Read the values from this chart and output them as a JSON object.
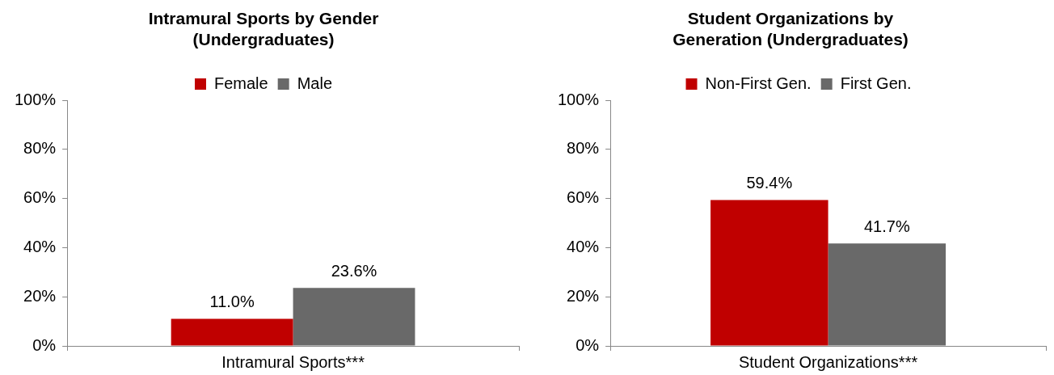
{
  "chart_data": [
    {
      "type": "bar",
      "title": "Intramural Sports by Gender (Undergraduates)",
      "categories": [
        "Intramural Sports***"
      ],
      "series": [
        {
          "name": "Female",
          "color": "#c00000",
          "values": [
            11.0
          ],
          "value_labels": [
            "11.0%"
          ]
        },
        {
          "name": "Male",
          "color": "#696969",
          "values": [
            23.6
          ],
          "value_labels": [
            "23.6%"
          ]
        }
      ],
      "ylim": [
        0,
        100
      ],
      "yticks": [
        {
          "value": 0,
          "label": "0%"
        },
        {
          "value": 20,
          "label": "20%"
        },
        {
          "value": 40,
          "label": "40%"
        },
        {
          "value": 60,
          "label": "60%"
        },
        {
          "value": 80,
          "label": "80%"
        },
        {
          "value": 100,
          "label": "100%"
        }
      ],
      "legend": "top",
      "grid": false
    },
    {
      "type": "bar",
      "title": "Student Organizations by Generation (Undergraduates)",
      "categories": [
        "Student Organizations***"
      ],
      "series": [
        {
          "name": "Non-First Gen.",
          "color": "#c00000",
          "values": [
            59.4
          ],
          "value_labels": [
            "59.4%"
          ]
        },
        {
          "name": "First Gen.",
          "color": "#696969",
          "values": [
            41.7
          ],
          "value_labels": [
            "41.7%"
          ]
        }
      ],
      "ylim": [
        0,
        100
      ],
      "yticks": [
        {
          "value": 0,
          "label": "0%"
        },
        {
          "value": 20,
          "label": "20%"
        },
        {
          "value": 40,
          "label": "40%"
        },
        {
          "value": 60,
          "label": "60%"
        },
        {
          "value": 80,
          "label": "80%"
        },
        {
          "value": 100,
          "label": "100%"
        }
      ],
      "legend": "top",
      "grid": false
    }
  ]
}
